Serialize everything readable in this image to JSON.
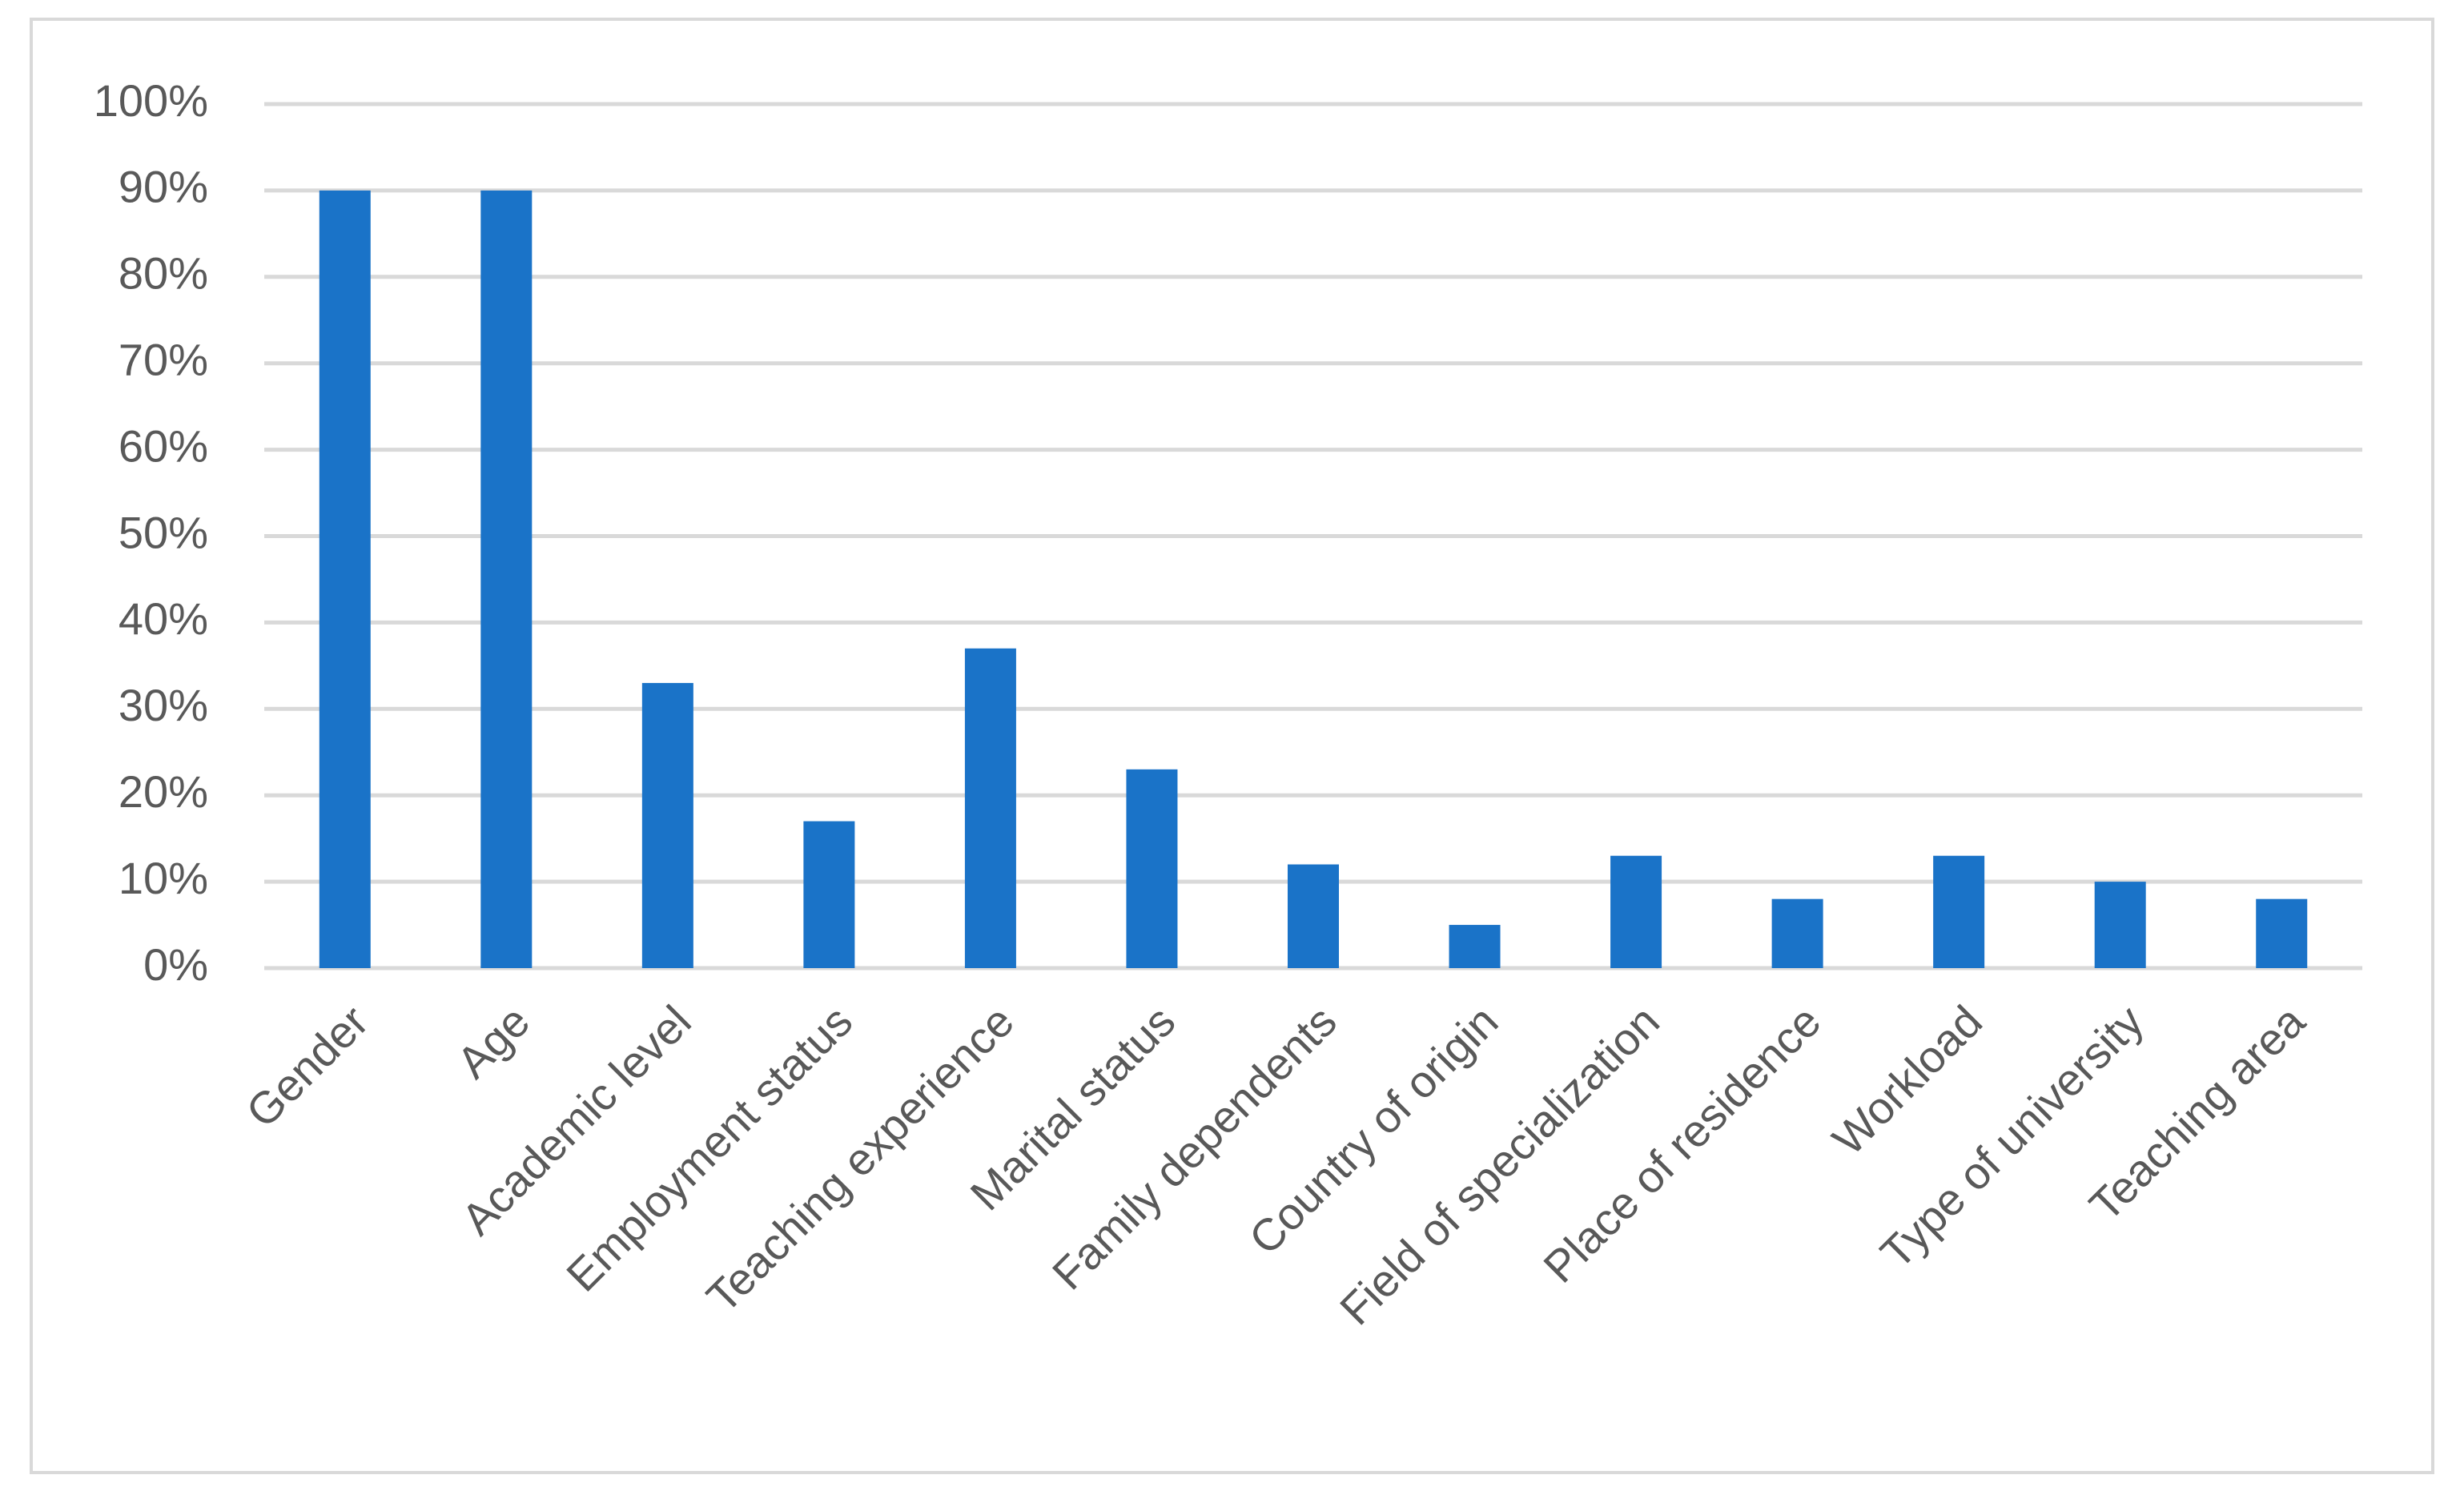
{
  "chart_data": {
    "type": "bar",
    "categories": [
      "Gender",
      "Age",
      "Academic level",
      "Employment status",
      "Teaching experience",
      "Marital status",
      "Family dependents",
      "Country of origin",
      "Field of specialization",
      "Place of residence",
      "Workload",
      "Type of university",
      "Teaching area"
    ],
    "values": [
      90,
      90,
      33,
      17,
      37,
      23,
      12,
      5,
      13,
      8,
      13,
      10,
      8
    ],
    "color": "#1a73c8",
    "ylim": [
      0,
      100
    ],
    "yticks": [
      {
        "value": 0,
        "label": "0%"
      },
      {
        "value": 10,
        "label": "10%"
      },
      {
        "value": 20,
        "label": "20%"
      },
      {
        "value": 30,
        "label": "30%"
      },
      {
        "value": 40,
        "label": "40%"
      },
      {
        "value": 50,
        "label": "50%"
      },
      {
        "value": 60,
        "label": "60%"
      },
      {
        "value": 70,
        "label": "70%"
      },
      {
        "value": 80,
        "label": "80%"
      },
      {
        "value": 90,
        "label": "90%"
      },
      {
        "value": 100,
        "label": "100%"
      }
    ],
    "grid": true
  }
}
